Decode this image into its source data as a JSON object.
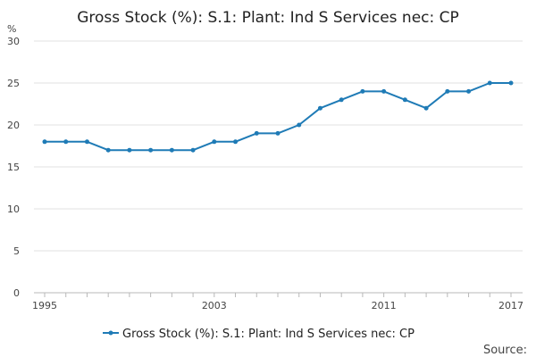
{
  "chart_data": {
    "type": "line",
    "title": "Gross Stock (%): S.1: Plant: Ind S Services nec: CP",
    "ylabel": "%",
    "xlabel": "",
    "ylim": [
      0,
      30
    ],
    "yticks": [
      0,
      5,
      10,
      15,
      20,
      25,
      30
    ],
    "xlim": [
      1995,
      2017
    ],
    "xticks": [
      1995,
      2003,
      2011,
      2017
    ],
    "grid": true,
    "legend_position": "bottom",
    "series": [
      {
        "name": "Gross Stock (%): S.1: Plant: Ind S Services nec: CP",
        "color": "#1f7bb6",
        "x": [
          1995,
          1996,
          1997,
          1998,
          1999,
          2000,
          2001,
          2002,
          2003,
          2004,
          2005,
          2006,
          2007,
          2008,
          2009,
          2010,
          2011,
          2012,
          2013,
          2014,
          2015,
          2016,
          2017
        ],
        "y": [
          18,
          18,
          18,
          17,
          17,
          17,
          17,
          17,
          18,
          18,
          19,
          19,
          20,
          22,
          23,
          24,
          24,
          23,
          22,
          24,
          24,
          25,
          25
        ]
      }
    ],
    "source_label": "Source:"
  }
}
